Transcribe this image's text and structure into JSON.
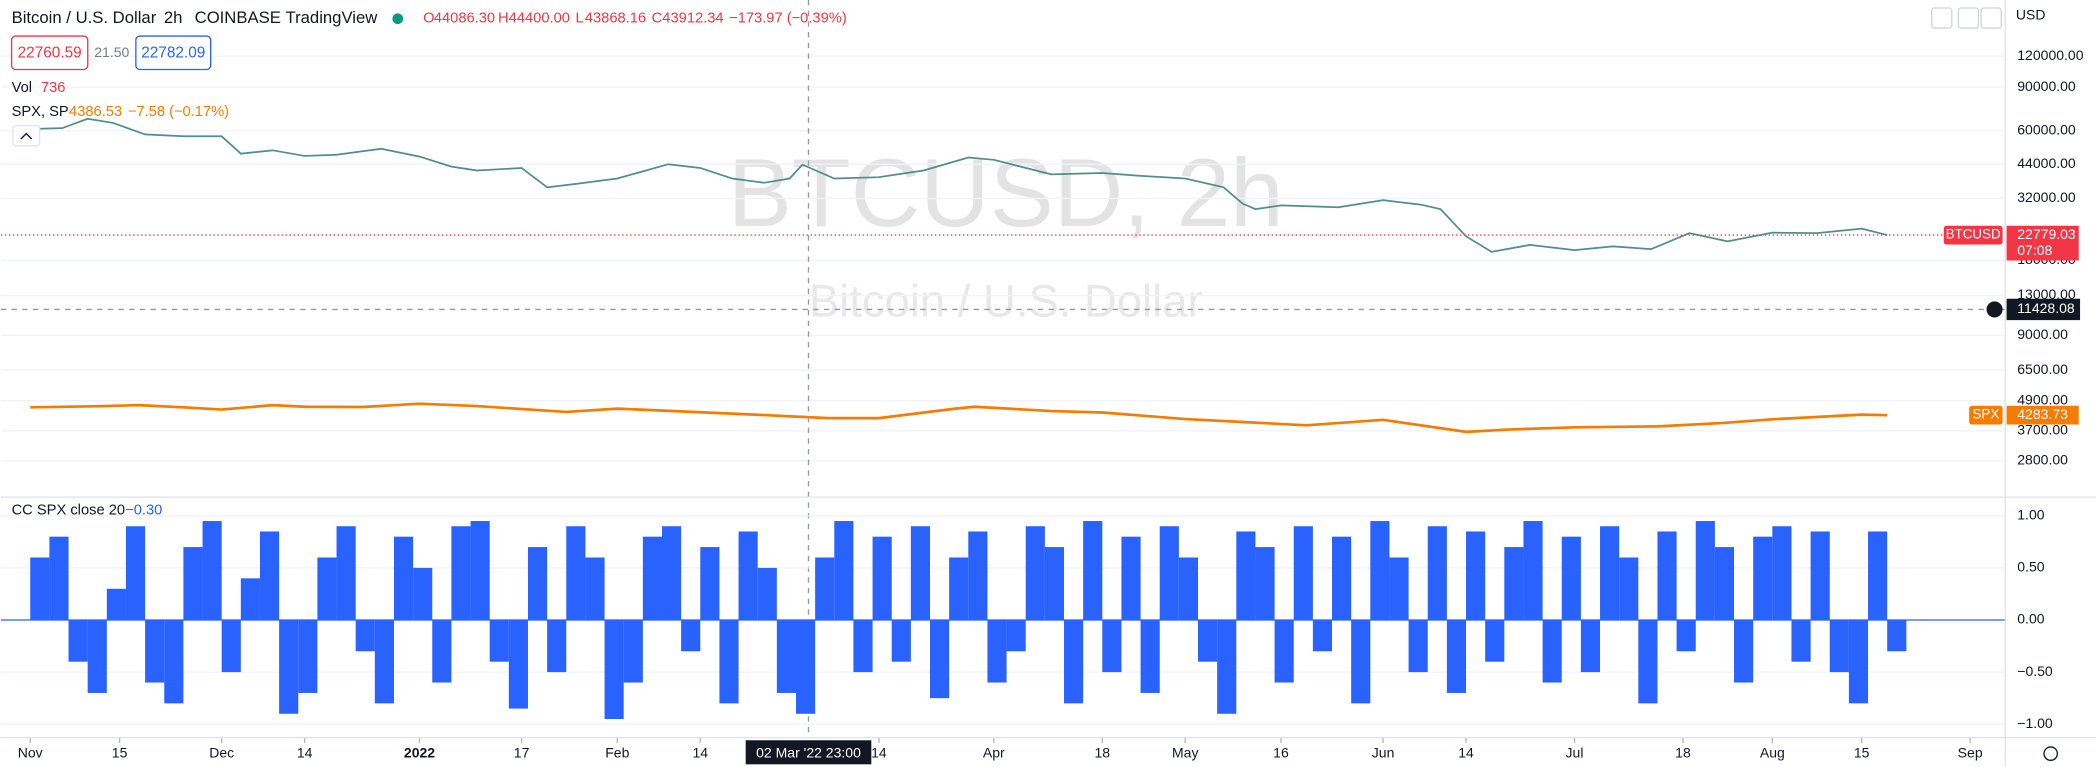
{
  "toolbar": {
    "symbol": "Bitcoin / U.S. Dollar",
    "interval": "2h",
    "exchange": "COINBASE",
    "source": "TradingView",
    "ohlc": [
      "O",
      "44086.30",
      "H",
      "44400.00",
      "L",
      "43868.16",
      "C",
      "43912.34"
    ],
    "change": "−173.97 (−0.39%)",
    "bid": "22760.59",
    "spread": "21.50",
    "ask": "22782.09",
    "vol_name": "Vol",
    "vol_value": "736",
    "spx_name": "SPX, SP",
    "spx_value": "4386.53",
    "spx_change": "−7.58 (−0.17%)",
    "cc_name": "CC SPX close 20",
    "cc_value": "−0.30",
    "currency": "USD",
    "watermark": "BTCUSD, 2h",
    "watermark_sub": "Bitcoin / U.S. Dollar",
    "btc_tag": "BTCUSD",
    "btc_countdown": "07:08",
    "spx_tag": "SPX"
  },
  "chart_data": [
    {
      "type": "line",
      "log_scale": true,
      "xlim": [
        -4.6,
        309.5
      ],
      "ylim": [
        2053,
        201900
      ],
      "yticks": [
        {
          "value": 120000,
          "label": "120000.00"
        },
        {
          "value": 90000,
          "label": "90000.00"
        },
        {
          "value": 60000,
          "label": "60000.00"
        },
        {
          "value": 44000,
          "label": "44000.00"
        },
        {
          "value": 32000,
          "label": "32000.00"
        },
        {
          "value": 18000,
          "label": "18000.00"
        },
        {
          "value": 13000,
          "label": "13000.00"
        },
        {
          "value": 9000,
          "label": "9000.00"
        },
        {
          "value": 6500,
          "label": "6500.00"
        },
        {
          "value": 4900,
          "label": "4900.00"
        },
        {
          "value": 3700,
          "label": "3700.00"
        },
        {
          "value": 2800,
          "label": "2800.00"
        }
      ],
      "xticks": [
        {
          "value": 0,
          "label": "Nov"
        },
        {
          "value": 14,
          "label": "15"
        },
        {
          "value": 30,
          "label": "Dec"
        },
        {
          "value": 43,
          "label": "14"
        },
        {
          "value": 61,
          "label": "2022"
        },
        {
          "value": 77,
          "label": "17"
        },
        {
          "value": 92,
          "label": "Feb"
        },
        {
          "value": 105,
          "label": "14"
        },
        {
          "value": 133,
          "label": "14"
        },
        {
          "value": 151,
          "label": "Apr"
        },
        {
          "value": 168,
          "label": "18"
        },
        {
          "value": 181,
          "label": "May"
        },
        {
          "value": 196,
          "label": "16"
        },
        {
          "value": 212,
          "label": "Jun"
        },
        {
          "value": 225,
          "label": "14"
        },
        {
          "value": 242,
          "label": "Jul"
        },
        {
          "value": 259,
          "label": "18"
        },
        {
          "value": 273,
          "label": "Aug"
        },
        {
          "value": 287,
          "label": "15"
        },
        {
          "value": 304,
          "label": "Sep"
        }
      ],
      "crosshair": {
        "x": 121.96,
        "y": 11428.08,
        "x_label": "02 Mar '22  23:00"
      },
      "series": [
        {
          "name": "BTCUSD",
          "color": "#4f8f84",
          "x": [
            0,
            5,
            9,
            13,
            18,
            24,
            30,
            33,
            38,
            43,
            48,
            55,
            61,
            66,
            70,
            77,
            81,
            86,
            92,
            100,
            105,
            110,
            115,
            119,
            121,
            126,
            133,
            140,
            147,
            151,
            160,
            168,
            174,
            181,
            187,
            190,
            192,
            196,
            205,
            212,
            218,
            221,
            225,
            229,
            235,
            242,
            248,
            254,
            260,
            266,
            273,
            280,
            287,
            291
          ],
          "values": [
            61000,
            61500,
            67000,
            64500,
            58000,
            57000,
            57000,
            48500,
            50000,
            47500,
            48000,
            50800,
            47200,
            43000,
            41500,
            42500,
            35500,
            36800,
            38500,
            44000,
            42500,
            38500,
            37000,
            38500,
            43800,
            38500,
            39000,
            41500,
            46800,
            45800,
            40000,
            40500,
            39500,
            38500,
            35500,
            30500,
            29000,
            30000,
            29500,
            31500,
            30200,
            29000,
            22500,
            19500,
            20800,
            19800,
            20500,
            20000,
            23200,
            21500,
            23300,
            23200,
            24200,
            22779.03
          ]
        },
        {
          "name": "SPX",
          "color": "#f57c00",
          "x": [
            0,
            10,
            17,
            25,
            30,
            38,
            43,
            52,
            61,
            70,
            84,
            92,
            105,
            115,
            125,
            133,
            145,
            148,
            160,
            168,
            181,
            190,
            200,
            212,
            225,
            232,
            242,
            255,
            265,
            273,
            287,
            291
          ],
          "values": [
            4610,
            4650,
            4700,
            4590,
            4510,
            4700,
            4630,
            4620,
            4766,
            4660,
            4410,
            4550,
            4400,
            4290,
            4170,
            4170,
            4550,
            4630,
            4450,
            4390,
            4130,
            4020,
            3900,
            4100,
            3670,
            3750,
            3825,
            3860,
            3980,
            4120,
            4305,
            4283.73
          ]
        }
      ]
    },
    {
      "type": "bar",
      "xlim": [
        -4.6,
        309.5
      ],
      "ylim": [
        -1.103,
        1.18
      ],
      "color": "#2962ff",
      "yticks": [
        {
          "value": 1,
          "label": "1.00"
        },
        {
          "value": 0.5,
          "label": "0.50"
        },
        {
          "value": 0,
          "label": "0.00"
        },
        {
          "value": -0.5,
          "label": "−0.50"
        },
        {
          "value": -1,
          "label": "−1.00"
        }
      ],
      "x": [
        0,
        3,
        6,
        9,
        12,
        15,
        18,
        21,
        24,
        27,
        30,
        33,
        36,
        39,
        42,
        45,
        48,
        51,
        54,
        57,
        60,
        63,
        66,
        69,
        72,
        75,
        78,
        81,
        84,
        87,
        90,
        93,
        96,
        99,
        102,
        105,
        108,
        111,
        114,
        117,
        120,
        123,
        126,
        129,
        132,
        135,
        138,
        141,
        144,
        147,
        150,
        153,
        156,
        159,
        162,
        165,
        168,
        171,
        174,
        177,
        180,
        183,
        186,
        189,
        192,
        195,
        198,
        201,
        204,
        207,
        210,
        213,
        216,
        219,
        222,
        225,
        228,
        231,
        234,
        237,
        240,
        243,
        246,
        249,
        252,
        255,
        258,
        261,
        264,
        267,
        270,
        273,
        276,
        279,
        282,
        285,
        288,
        291
      ],
      "values": [
        0.6,
        0.8,
        -0.4,
        -0.7,
        0.3,
        0.9,
        -0.6,
        -0.8,
        0.7,
        0.95,
        -0.5,
        0.4,
        0.85,
        -0.9,
        -0.7,
        0.6,
        0.9,
        -0.3,
        -0.8,
        0.8,
        0.5,
        -0.6,
        0.9,
        0.95,
        -0.4,
        -0.85,
        0.7,
        -0.5,
        0.9,
        0.6,
        -0.95,
        -0.6,
        0.8,
        0.9,
        -0.3,
        0.7,
        -0.8,
        0.85,
        0.5,
        -0.7,
        -0.9,
        0.6,
        0.95,
        -0.5,
        0.8,
        -0.4,
        0.9,
        -0.75,
        0.6,
        0.85,
        -0.6,
        -0.3,
        0.9,
        0.7,
        -0.8,
        0.95,
        -0.5,
        0.8,
        -0.7,
        0.9,
        0.6,
        -0.4,
        -0.9,
        0.85,
        0.7,
        -0.6,
        0.9,
        -0.3,
        0.8,
        -0.8,
        0.95,
        0.6,
        -0.5,
        0.9,
        -0.7,
        0.85,
        -0.4,
        0.7,
        0.95,
        -0.6,
        0.8,
        -0.5,
        0.9,
        0.6,
        -0.8,
        0.85,
        -0.3,
        0.95,
        0.7,
        -0.6,
        0.8,
        0.9,
        -0.4,
        0.85,
        -0.5,
        -0.8,
        0.85,
        -0.3
      ]
    }
  ]
}
